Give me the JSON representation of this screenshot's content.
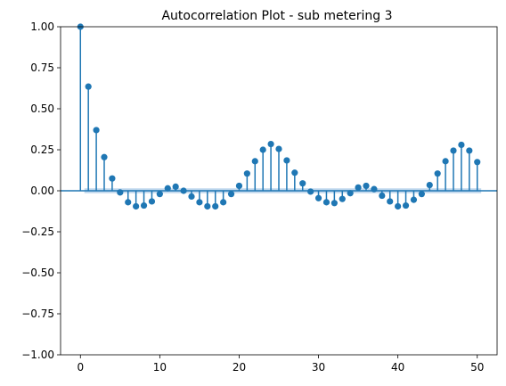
{
  "chart_data": {
    "type": "stem",
    "title": "Autocorrelation Plot - sub metering 3",
    "xlabel": "",
    "ylabel": "",
    "xlim": [
      -2.5,
      52.5
    ],
    "ylim": [
      -1.0,
      1.0
    ],
    "x_ticks": [
      0,
      10,
      20,
      30,
      40,
      50
    ],
    "x_tick_labels": [
      "0",
      "10",
      "20",
      "30",
      "40",
      "50"
    ],
    "y_ticks": [
      -1.0,
      -0.75,
      -0.5,
      -0.25,
      0.0,
      0.25,
      0.5,
      0.75,
      1.0
    ],
    "y_tick_labels": [
      "−1.00",
      "−0.75",
      "−0.50",
      "−0.25",
      "0.00",
      "0.25",
      "0.50",
      "0.75",
      "1.00"
    ],
    "grid": false,
    "legend": "none",
    "color": "#1f77b4",
    "confidence_band_color": "#a6c8e6",
    "confidence_band_halfwidth": 0.015,
    "lags": [
      0,
      1,
      2,
      3,
      4,
      5,
      6,
      7,
      8,
      9,
      10,
      11,
      12,
      13,
      14,
      15,
      16,
      17,
      18,
      19,
      20,
      21,
      22,
      23,
      24,
      25,
      26,
      27,
      28,
      29,
      30,
      31,
      32,
      33,
      34,
      35,
      36,
      37,
      38,
      39,
      40,
      41,
      42,
      43,
      44,
      45,
      46,
      47,
      48,
      49,
      50
    ],
    "acf": [
      1.0,
      0.635,
      0.37,
      0.205,
      0.075,
      -0.01,
      -0.07,
      -0.095,
      -0.09,
      -0.065,
      -0.02,
      0.015,
      0.025,
      0.0,
      -0.035,
      -0.07,
      -0.095,
      -0.095,
      -0.07,
      -0.02,
      0.03,
      0.105,
      0.18,
      0.25,
      0.285,
      0.255,
      0.185,
      0.11,
      0.045,
      -0.005,
      -0.045,
      -0.07,
      -0.075,
      -0.05,
      -0.015,
      0.02,
      0.03,
      0.01,
      -0.03,
      -0.065,
      -0.095,
      -0.09,
      -0.055,
      -0.02,
      0.035,
      0.105,
      0.18,
      0.245,
      0.28,
      0.245,
      0.175
    ]
  }
}
